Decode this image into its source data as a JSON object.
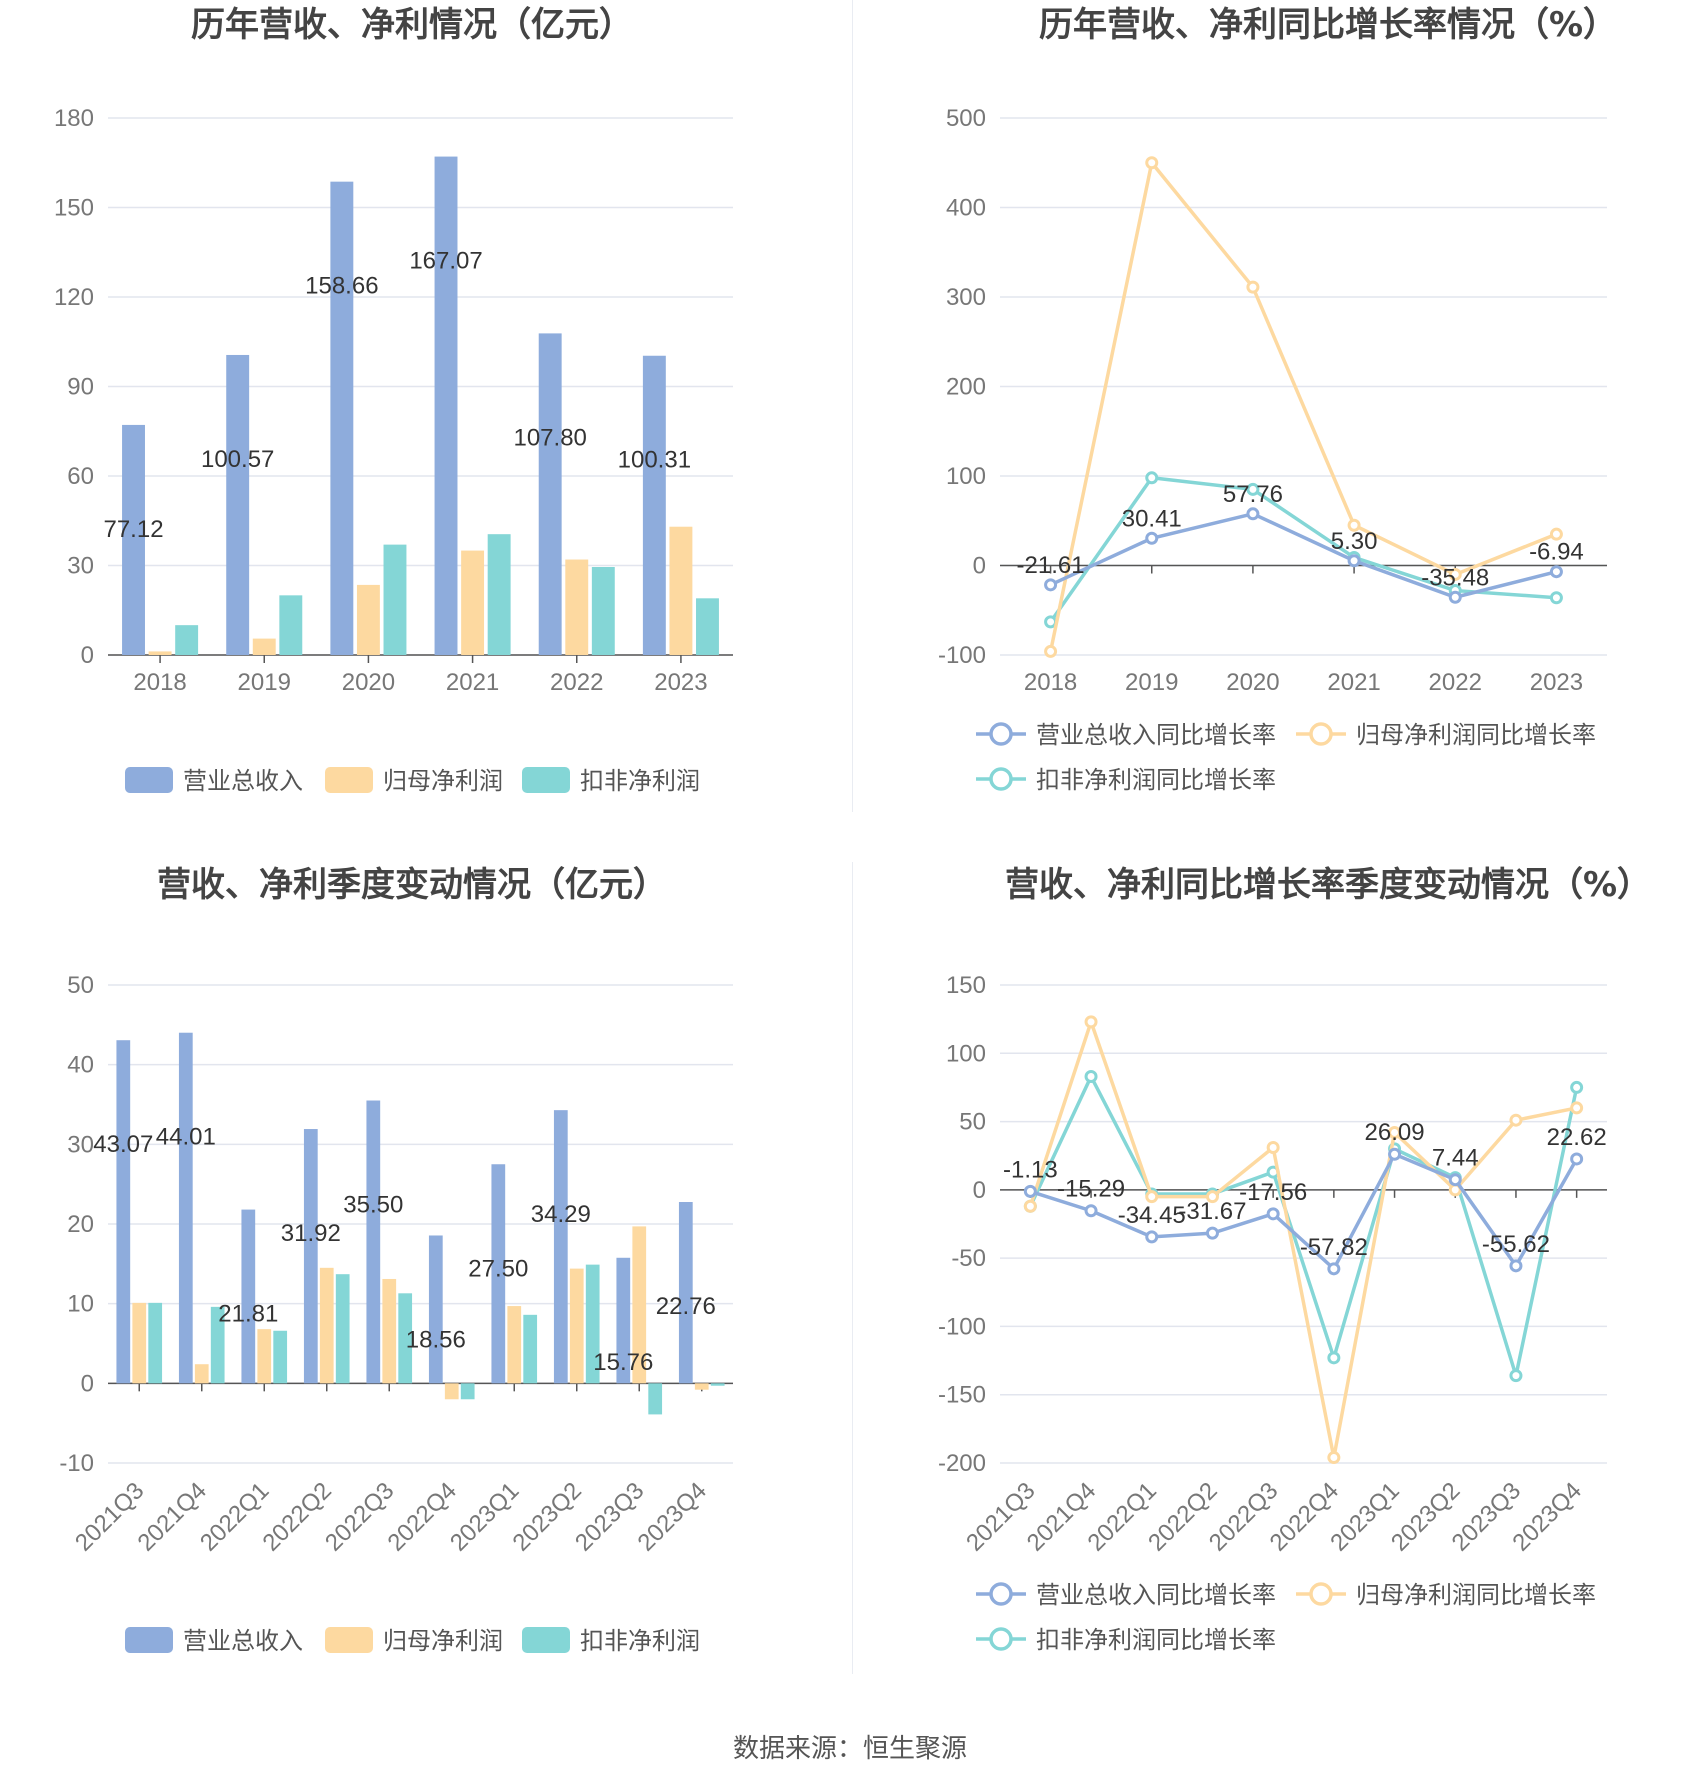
{
  "source": "数据来源：恒生聚源",
  "charts": [
    {
      "id": "annual-amount",
      "type": "bar",
      "title": "历年营收、净利情况（亿元）",
      "categories": [
        "2018",
        "2019",
        "2020",
        "2021",
        "2022",
        "2023"
      ],
      "ylim": [
        0,
        180
      ],
      "yticks": [
        0,
        30,
        60,
        90,
        120,
        150,
        180
      ],
      "series": [
        {
          "name": "营业总收入",
          "color": "#8eacdc",
          "values": [
            77.12,
            100.57,
            158.66,
            167.07,
            107.8,
            100.31
          ],
          "labels": [
            "77.12",
            "100.57",
            "158.66",
            "167.07",
            "107.80",
            "100.31"
          ]
        },
        {
          "name": "归母净利润",
          "color": "#fdd9a0",
          "values": [
            1.2,
            5.5,
            23.5,
            35.0,
            32.0,
            43.0
          ]
        },
        {
          "name": "扣非净利润",
          "color": "#84d6d6",
          "values": [
            10.0,
            20.0,
            37.0,
            40.5,
            29.5,
            19.0
          ]
        }
      ]
    },
    {
      "id": "annual-growth",
      "type": "line",
      "title": "历年营收、净利同比增长率情况（%）",
      "categories": [
        "2018",
        "2019",
        "2020",
        "2021",
        "2022",
        "2023"
      ],
      "ylim": [
        -100,
        500
      ],
      "yticks": [
        -100,
        0,
        100,
        200,
        300,
        400,
        500
      ],
      "series": [
        {
          "name": "营业总收入同比增长率",
          "color": "#8eacdc",
          "values": [
            -21.61,
            30.41,
            57.76,
            5.3,
            -35.48,
            -6.94
          ],
          "labels": [
            "-21.61",
            "30.41",
            "57.76",
            "5.30",
            "-35.48",
            "-6.94"
          ]
        },
        {
          "name": "归母净利润同比增长率",
          "color": "#fdd9a0",
          "values": [
            -96,
            450,
            311,
            45,
            -10,
            35
          ]
        },
        {
          "name": "扣非净利润同比增长率",
          "color": "#84d6d6",
          "values": [
            -63,
            98,
            85,
            9,
            -28,
            -36
          ]
        }
      ]
    },
    {
      "id": "quarterly-amount",
      "type": "bar",
      "title": "营收、净利季度变动情况（亿元）",
      "categories": [
        "2021Q3",
        "2021Q4",
        "2022Q1",
        "2022Q2",
        "2022Q3",
        "2022Q4",
        "2023Q1",
        "2023Q2",
        "2023Q3",
        "2023Q4"
      ],
      "ylim": [
        -10,
        50
      ],
      "yticks": [
        -10,
        0,
        10,
        20,
        30,
        40,
        50
      ],
      "series": [
        {
          "name": "营业总收入",
          "color": "#8eacdc",
          "values": [
            43.07,
            44.01,
            21.81,
            31.92,
            35.5,
            18.56,
            27.5,
            34.29,
            15.76,
            22.76
          ],
          "labels": [
            "43.07",
            "44.01",
            "21.81",
            "31.92",
            "35.50",
            "18.56",
            "27.50",
            "34.29",
            "15.76",
            "22.76"
          ]
        },
        {
          "name": "归母净利润",
          "color": "#fdd9a0",
          "values": [
            10.1,
            2.4,
            6.8,
            14.5,
            13.1,
            -2.0,
            9.7,
            14.4,
            19.7,
            -0.8
          ]
        },
        {
          "name": "扣非净利润",
          "color": "#84d6d6",
          "values": [
            10.1,
            9.6,
            6.6,
            13.7,
            11.3,
            -2.0,
            8.6,
            14.9,
            -3.9,
            -0.3
          ]
        }
      ]
    },
    {
      "id": "quarterly-growth",
      "type": "line",
      "title": "营收、净利同比增长率季度变动情况（%）",
      "categories": [
        "2021Q3",
        "2021Q4",
        "2022Q1",
        "2022Q2",
        "2022Q3",
        "2022Q4",
        "2023Q1",
        "2023Q2",
        "2023Q3",
        "2023Q4"
      ],
      "ylim": [
        -200,
        150
      ],
      "yticks": [
        -200,
        -150,
        -100,
        -50,
        0,
        50,
        100,
        150
      ],
      "series": [
        {
          "name": "营业总收入同比增长率",
          "color": "#8eacdc",
          "values": [
            -1.13,
            -15.29,
            -34.45,
            -31.67,
            -17.56,
            -57.82,
            26.09,
            7.44,
            -55.62,
            22.62
          ],
          "labels": [
            "-1.13",
            "-15.29",
            "-34.45",
            "-31.67",
            "-17.56",
            "-57.82",
            "26.09",
            "7.44",
            "-55.62",
            "22.62"
          ]
        },
        {
          "name": "归母净利润同比增长率",
          "color": "#fdd9a0",
          "values": [
            -12,
            123,
            -5,
            -5,
            31,
            -196,
            42,
            0,
            51,
            60
          ]
        },
        {
          "name": "扣非净利润同比增长率",
          "color": "#84d6d6",
          "values": [
            -12,
            83,
            -3,
            -3,
            13,
            -123,
            30,
            9,
            -136,
            75
          ]
        }
      ]
    }
  ]
}
